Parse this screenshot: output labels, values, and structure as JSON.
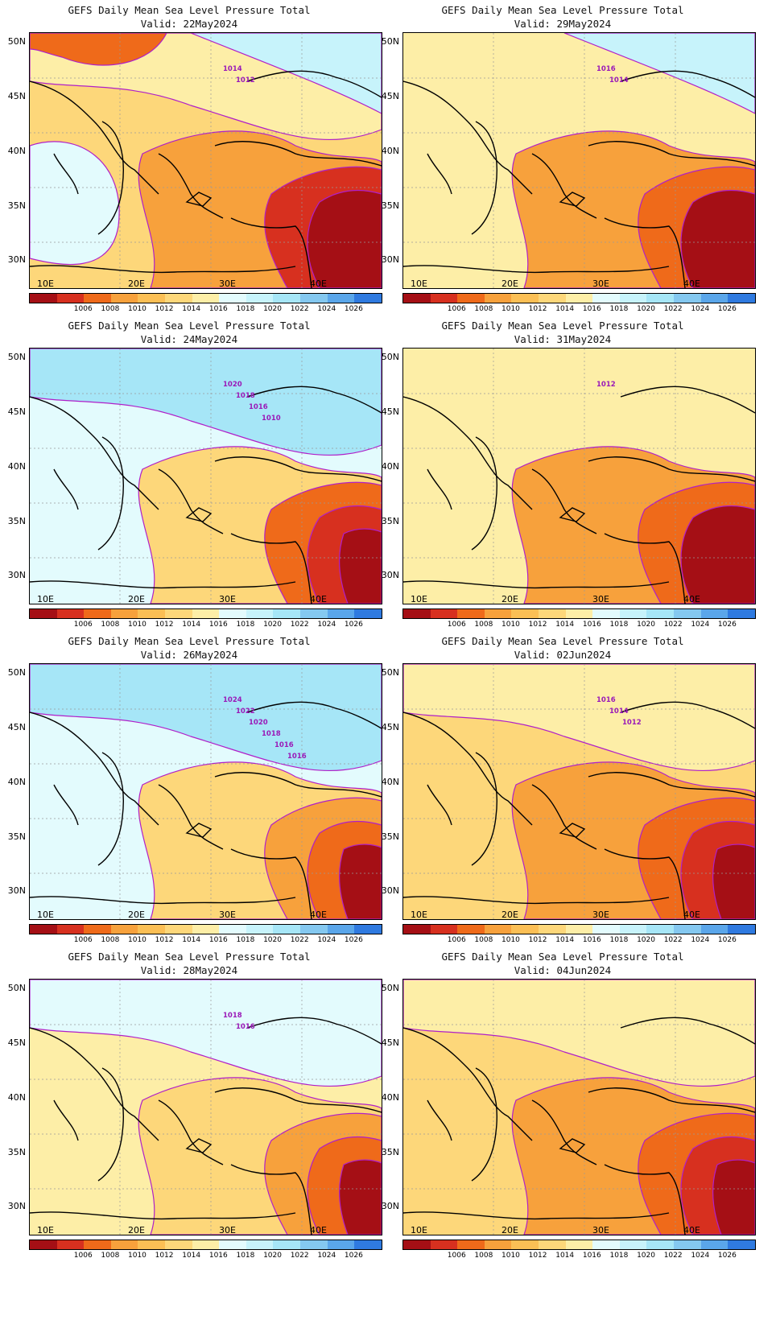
{
  "title_line": "GEFS Daily Mean Sea Level Pressure Total",
  "lat_labels": [
    "50N",
    "45N",
    "40N",
    "35N",
    "30N"
  ],
  "lon_labels": [
    "10E",
    "20E",
    "30E",
    "40E"
  ],
  "colorbar": {
    "colors": [
      "#a50f15",
      "#d7301f",
      "#ef6a1a",
      "#f7a13c",
      "#fbbf55",
      "#fdd77a",
      "#fdeea7",
      "#e3fbfd",
      "#c7f3fb",
      "#a6e6f7",
      "#84c8f0",
      "#5aa6ea",
      "#2f7ae0"
    ],
    "labels": [
      "1006",
      "1008",
      "1010",
      "1012",
      "1014",
      "1016",
      "1018",
      "1020",
      "1022",
      "1024",
      "1026"
    ]
  },
  "panels": [
    {
      "valid": "Valid: 22May2024",
      "contours": [
        "1014",
        "1012"
      ],
      "bg": "#fdd77a",
      "fills": [
        [
          "#fdeea7",
          "n"
        ],
        [
          "#c7f3fb",
          "ne"
        ],
        [
          "#e3fbfd",
          "w"
        ],
        [
          "#f7a13c",
          "c"
        ],
        [
          "#d7301f",
          "se"
        ],
        [
          "#a50f15",
          "se2"
        ],
        [
          "#ef6a1a",
          "nw"
        ]
      ]
    },
    {
      "valid": "Valid: 29May2024",
      "contours": [
        "1016",
        "1014"
      ],
      "bg": "#fdeea7",
      "fills": [
        [
          "#c7f3fb",
          "ne"
        ],
        [
          "#f7a13c",
          "c"
        ],
        [
          "#ef6a1a",
          "se"
        ],
        [
          "#a50f15",
          "se2"
        ]
      ]
    },
    {
      "valid": "Valid: 24May2024",
      "contours": [
        "1020",
        "1018",
        "1016",
        "1010"
      ],
      "bg": "#e3fbfd",
      "fills": [
        [
          "#5aa6ea",
          "ne"
        ],
        [
          "#a6e6f7",
          "n"
        ],
        [
          "#fdd77a",
          "c"
        ],
        [
          "#ef6a1a",
          "se"
        ],
        [
          "#d7301f",
          "se2"
        ],
        [
          "#a50f15",
          "se3"
        ]
      ]
    },
    {
      "valid": "Valid: 31May2024",
      "contours": [
        "1012"
      ],
      "bg": "#fdeea7",
      "fills": [
        [
          "#f7a13c",
          "c"
        ],
        [
          "#ef6a1a",
          "se"
        ],
        [
          "#a50f15",
          "se2"
        ]
      ]
    },
    {
      "valid": "Valid: 26May2024",
      "contours": [
        "1024",
        "1022",
        "1020",
        "1018",
        "1016",
        "1016"
      ],
      "bg": "#e3fbfd",
      "fills": [
        [
          "#84c8f0",
          "ne"
        ],
        [
          "#a6e6f7",
          "n"
        ],
        [
          "#fdd77a",
          "c"
        ],
        [
          "#f7a13c",
          "se"
        ],
        [
          "#ef6a1a",
          "se2"
        ],
        [
          "#a50f15",
          "se3"
        ]
      ]
    },
    {
      "valid": "Valid: 02Jun2024",
      "contours": [
        "1016",
        "1014",
        "1012"
      ],
      "bg": "#fdd77a",
      "fills": [
        [
          "#fdeea7",
          "n"
        ],
        [
          "#f7a13c",
          "c"
        ],
        [
          "#ef6a1a",
          "se"
        ],
        [
          "#d7301f",
          "se2"
        ],
        [
          "#a50f15",
          "se3"
        ]
      ]
    },
    {
      "valid": "Valid: 28May2024",
      "contours": [
        "1018",
        "1016"
      ],
      "bg": "#fdeea7",
      "fills": [
        [
          "#c7f3fb",
          "ne"
        ],
        [
          "#e3fbfd",
          "n"
        ],
        [
          "#fdd77a",
          "c"
        ],
        [
          "#f7a13c",
          "se"
        ],
        [
          "#ef6a1a",
          "se2"
        ],
        [
          "#a50f15",
          "se3"
        ]
      ]
    },
    {
      "valid": "Valid: 04Jun2024",
      "contours": [],
      "bg": "#fdd77a",
      "fills": [
        [
          "#fdeea7",
          "n"
        ],
        [
          "#f7a13c",
          "c"
        ],
        [
          "#ef6a1a",
          "se"
        ],
        [
          "#d7301f",
          "se2"
        ],
        [
          "#a50f15",
          "se3"
        ]
      ]
    }
  ]
}
